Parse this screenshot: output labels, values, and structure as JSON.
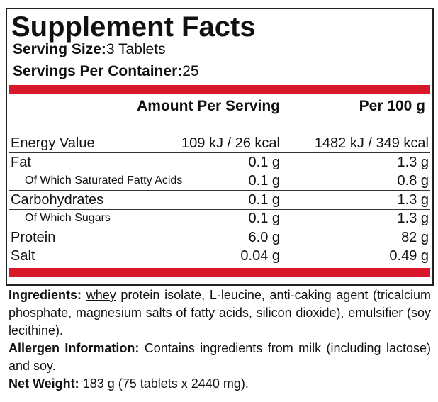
{
  "header": {
    "title": "Supplement Facts",
    "serving_size_label": "Serving Size:",
    "serving_size": "3 Tablets",
    "servings_label": "Servings Per Container:",
    "servings": "25"
  },
  "table": {
    "columns": [
      "Amount Per Serving",
      "Per 100 g"
    ],
    "rows": [
      [
        "Energy Value",
        "109 kJ / 26 kcal",
        "1482 kJ / 349 kcal"
      ],
      [
        "Fat",
        "0.1 g",
        "1.3 g"
      ],
      [
        "Of Which Saturated Fatty Acids",
        "0.1 g",
        "0.8 g"
      ],
      [
        "Carbohydrates",
        "0.1 g",
        "1.3 g"
      ],
      [
        "Of Which Sugars",
        "0.1 g",
        "1.3 g"
      ],
      [
        "Protein",
        "6.0 g",
        "82 g"
      ],
      [
        "Salt",
        "0.04 g",
        "0.49 g"
      ]
    ]
  },
  "ingredients": {
    "label": "Ingredients:",
    "parts": [
      "whey",
      " protein isolate, L-leucine, anti-caking agent (tricalcium phosphate, magnesium salts of fatty acids, silicon dioxide), emulsifier (",
      "soy",
      " lecithine)."
    ]
  },
  "allergen": {
    "label": "Allergen Information:",
    "text": "Contains ingredients from milk (including lactose) and soy."
  },
  "net_weight": {
    "label": "Net Weight:",
    "text": "183 g (75 tablets x 2440 mg)."
  }
}
